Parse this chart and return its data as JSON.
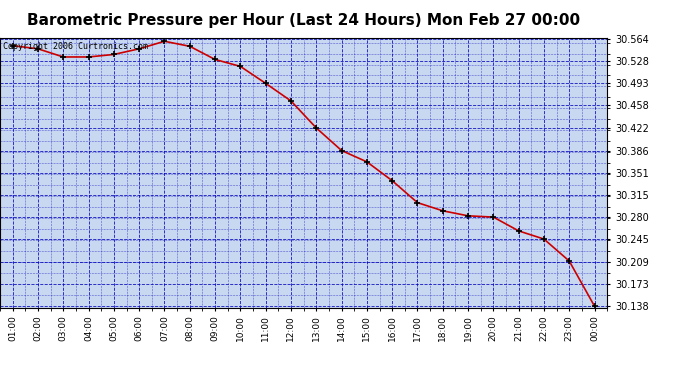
{
  "title": "Barometric Pressure per Hour (Last 24 Hours) Mon Feb 27 00:00",
  "x_labels": [
    "01:00",
    "02:00",
    "03:00",
    "04:00",
    "05:00",
    "06:00",
    "07:00",
    "08:00",
    "09:00",
    "10:00",
    "11:00",
    "12:00",
    "13:00",
    "14:00",
    "15:00",
    "16:00",
    "17:00",
    "18:00",
    "19:00",
    "20:00",
    "21:00",
    "22:00",
    "23:00",
    "00:00"
  ],
  "y_values": [
    30.553,
    30.548,
    30.535,
    30.535,
    30.539,
    30.548,
    30.56,
    30.552,
    30.531,
    30.52,
    30.493,
    30.465,
    30.422,
    30.386,
    30.368,
    30.338,
    30.303,
    30.29,
    30.282,
    30.28,
    30.258,
    30.245,
    30.21,
    30.138
  ],
  "y_min": 30.138,
  "y_max": 30.564,
  "y_ticks": [
    30.138,
    30.173,
    30.209,
    30.245,
    30.28,
    30.315,
    30.351,
    30.386,
    30.422,
    30.458,
    30.493,
    30.528,
    30.564
  ],
  "line_color": "#cc0000",
  "plot_bg_color": "#c8d8f0",
  "grid_color": "#0000bb",
  "title_fontsize": 11,
  "copyright_text": "Copyright 2006 Curtronics.com",
  "fig_bg": "#ffffff",
  "border_color": "#000000"
}
